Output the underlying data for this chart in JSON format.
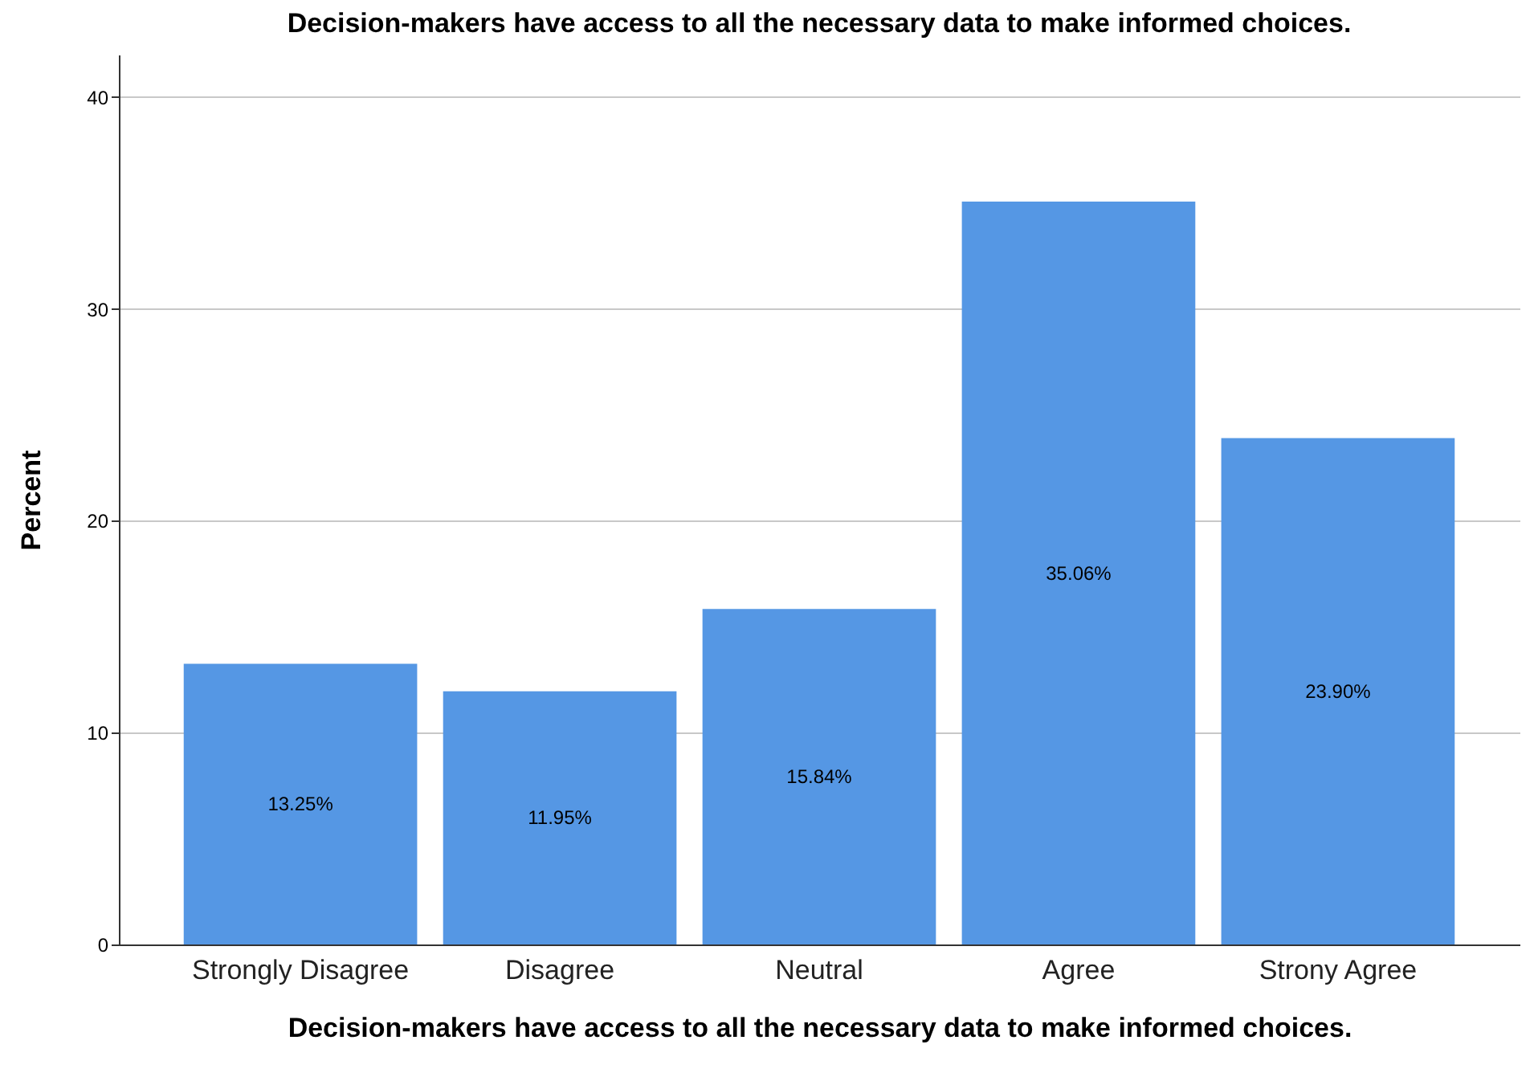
{
  "chart_data": {
    "type": "bar",
    "title": "Decision-makers have access to all the necessary data to make informed choices.",
    "xlabel": "Decision-makers have access to all the necessary data to make informed choices.",
    "ylabel": "Percent",
    "categories": [
      "Strongly Disagree",
      "Disagree",
      "Neutral",
      "Agree",
      "Strony Agree"
    ],
    "values": [
      13.25,
      11.95,
      15.84,
      35.06,
      23.9
    ],
    "value_labels": [
      "13.25%",
      "11.95%",
      "15.84%",
      "35.06%",
      "23.90%"
    ],
    "color": "#5597e4",
    "ylim": [
      0,
      42
    ],
    "yticks": [
      0,
      10,
      20,
      30,
      40
    ],
    "grid": "y"
  }
}
